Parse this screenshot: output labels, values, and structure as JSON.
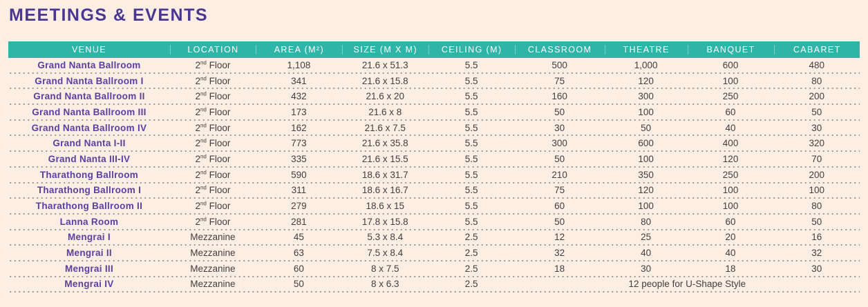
{
  "page": {
    "title": "MEETINGS & EVENTS",
    "colors": {
      "background": "#fceee3",
      "header_bg": "#2eb5a8",
      "header_text": "#ffffff",
      "title_text": "#4a3791",
      "venue_text": "#5a3fa2",
      "body_text": "#423e3f",
      "dot_separator": "#9b948e"
    }
  },
  "table": {
    "columns": [
      "VENUE",
      "LOCATION",
      "AREA (M²)",
      "SIZE (M X M)",
      "CEILING (M)",
      "CLASSROOM",
      "THEATRE",
      "BANQUET",
      "CABARET"
    ],
    "rows": [
      {
        "venue": "Grand Nanta Ballroom",
        "location": "2nd Floor",
        "area": "1,108",
        "size": "21.6 x 51.3",
        "ceiling": "5.5",
        "classroom": "500",
        "theatre": "1,000",
        "banquet": "600",
        "cabaret": "480"
      },
      {
        "venue": "Grand Nanta Ballroom I",
        "location": "2nd Floor",
        "area": "341",
        "size": "21.6 x 15.8",
        "ceiling": "5.5",
        "classroom": "75",
        "theatre": "120",
        "banquet": "100",
        "cabaret": "80"
      },
      {
        "venue": "Grand Nanta Ballroom II",
        "location": "2nd Floor",
        "area": "432",
        "size": "21.6 x 20",
        "ceiling": "5.5",
        "classroom": "160",
        "theatre": "300",
        "banquet": "250",
        "cabaret": "200"
      },
      {
        "venue": "Grand Nanta Ballroom III",
        "location": "2nd Floor",
        "area": "173",
        "size": "21.6 x 8",
        "ceiling": "5.5",
        "classroom": "50",
        "theatre": "100",
        "banquet": "60",
        "cabaret": "50"
      },
      {
        "venue": "Grand Nanta Ballroom IV",
        "location": "2nd Floor",
        "area": "162",
        "size": "21.6 x 7.5",
        "ceiling": "5.5",
        "classroom": "30",
        "theatre": "50",
        "banquet": "40",
        "cabaret": "30"
      },
      {
        "venue": "Grand Nanta I-II",
        "location": "2nd Floor",
        "area": "773",
        "size": "21.6 x 35.8",
        "ceiling": "5.5",
        "classroom": "300",
        "theatre": "600",
        "banquet": "400",
        "cabaret": "320"
      },
      {
        "venue": "Grand Nanta III-IV",
        "location": "2nd Floor",
        "area": "335",
        "size": "21.6 x 15.5",
        "ceiling": "5.5",
        "classroom": "50",
        "theatre": "100",
        "banquet": "120",
        "cabaret": "70"
      },
      {
        "venue": "Tharathong Ballroom",
        "location": "2nd Floor",
        "area": "590",
        "size": "18.6 x 31.7",
        "ceiling": "5.5",
        "classroom": "210",
        "theatre": "350",
        "banquet": "250",
        "cabaret": "200"
      },
      {
        "venue": "Tharathong Ballroom I",
        "location": "2nd Floor",
        "area": "311",
        "size": "18.6 x 16.7",
        "ceiling": "5.5",
        "classroom": "75",
        "theatre": "120",
        "banquet": "100",
        "cabaret": "100"
      },
      {
        "venue": "Tharathong Ballroom II",
        "location": "2nd Floor",
        "area": "279",
        "size": "18.6 x 15",
        "ceiling": "5.5",
        "classroom": "60",
        "theatre": "100",
        "banquet": "100",
        "cabaret": "80"
      },
      {
        "venue": "Lanna Room",
        "location": "2nd Floor",
        "area": "281",
        "size": "17.8 x 15.8",
        "ceiling": "5.5",
        "classroom": "50",
        "theatre": "80",
        "banquet": "60",
        "cabaret": "50"
      },
      {
        "venue": "Mengrai I",
        "location": "Mezzanine",
        "area": "45",
        "size": "5.3 x 8.4",
        "ceiling": "2.5",
        "classroom": "12",
        "theatre": "25",
        "banquet": "20",
        "cabaret": "16"
      },
      {
        "venue": "Mengrai II",
        "location": "Mezzanine",
        "area": "63",
        "size": "7.5 x 8.4",
        "ceiling": "2.5",
        "classroom": "32",
        "theatre": "40",
        "banquet": "40",
        "cabaret": "32"
      },
      {
        "venue": "Mengrai III",
        "location": "Mezzanine",
        "area": "60",
        "size": "8 x 7.5",
        "ceiling": "2.5",
        "classroom": "18",
        "theatre": "30",
        "banquet": "18",
        "cabaret": "30"
      },
      {
        "venue": "Mengrai IV",
        "location": "Mezzanine",
        "area": "50",
        "size": "8 x 6.3",
        "ceiling": "2.5",
        "merged_note": "12 people for U-Shape Style"
      }
    ]
  }
}
